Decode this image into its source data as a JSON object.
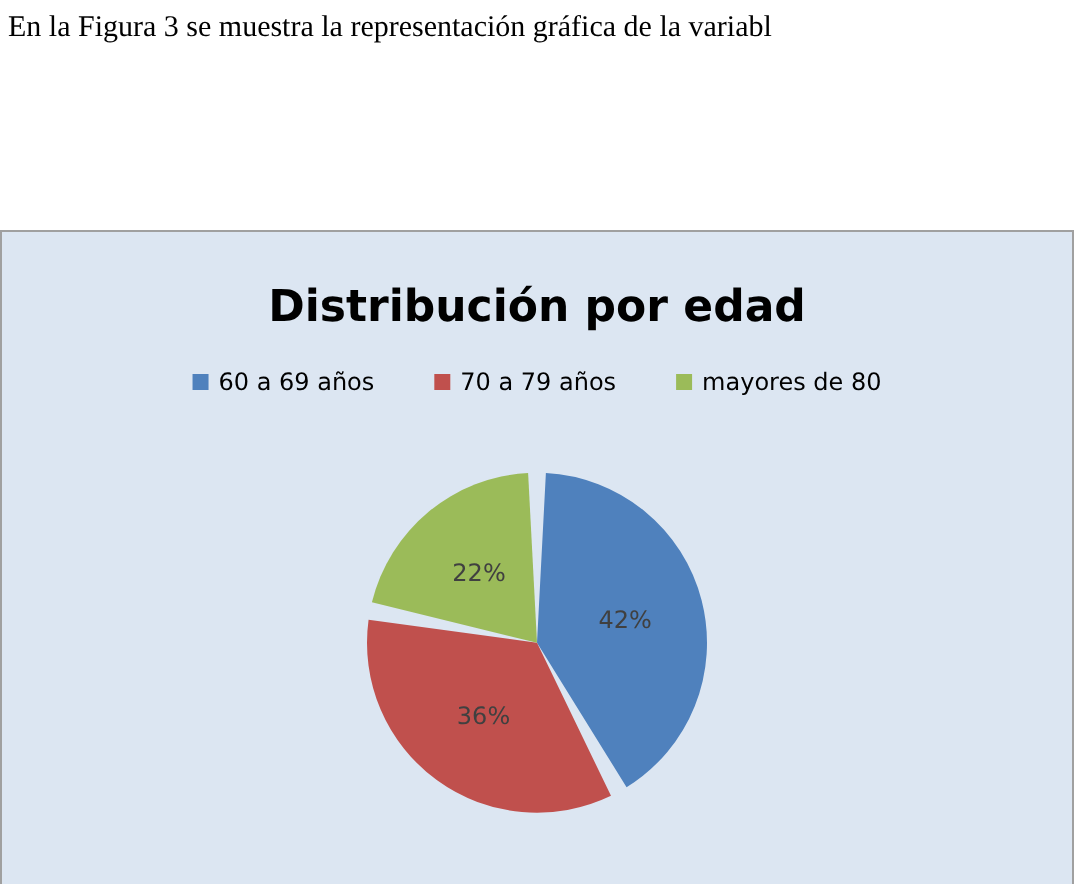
{
  "chart_data": {
    "type": "pie",
    "title": "Distribución por edad",
    "annotations": [
      "En la Figura 3 se muestra la representación  gráfica de la variabl"
    ],
    "categories": [
      "60 a 69 años",
      "70 a 79 años",
      "mayores de 80"
    ],
    "values": [
      42,
      36,
      22
    ],
    "colors": [
      "#4f81bd",
      "#c0504d",
      "#9bbb59"
    ],
    "value_labels": [
      "42%",
      "36%",
      "22%"
    ],
    "legend": "top"
  }
}
